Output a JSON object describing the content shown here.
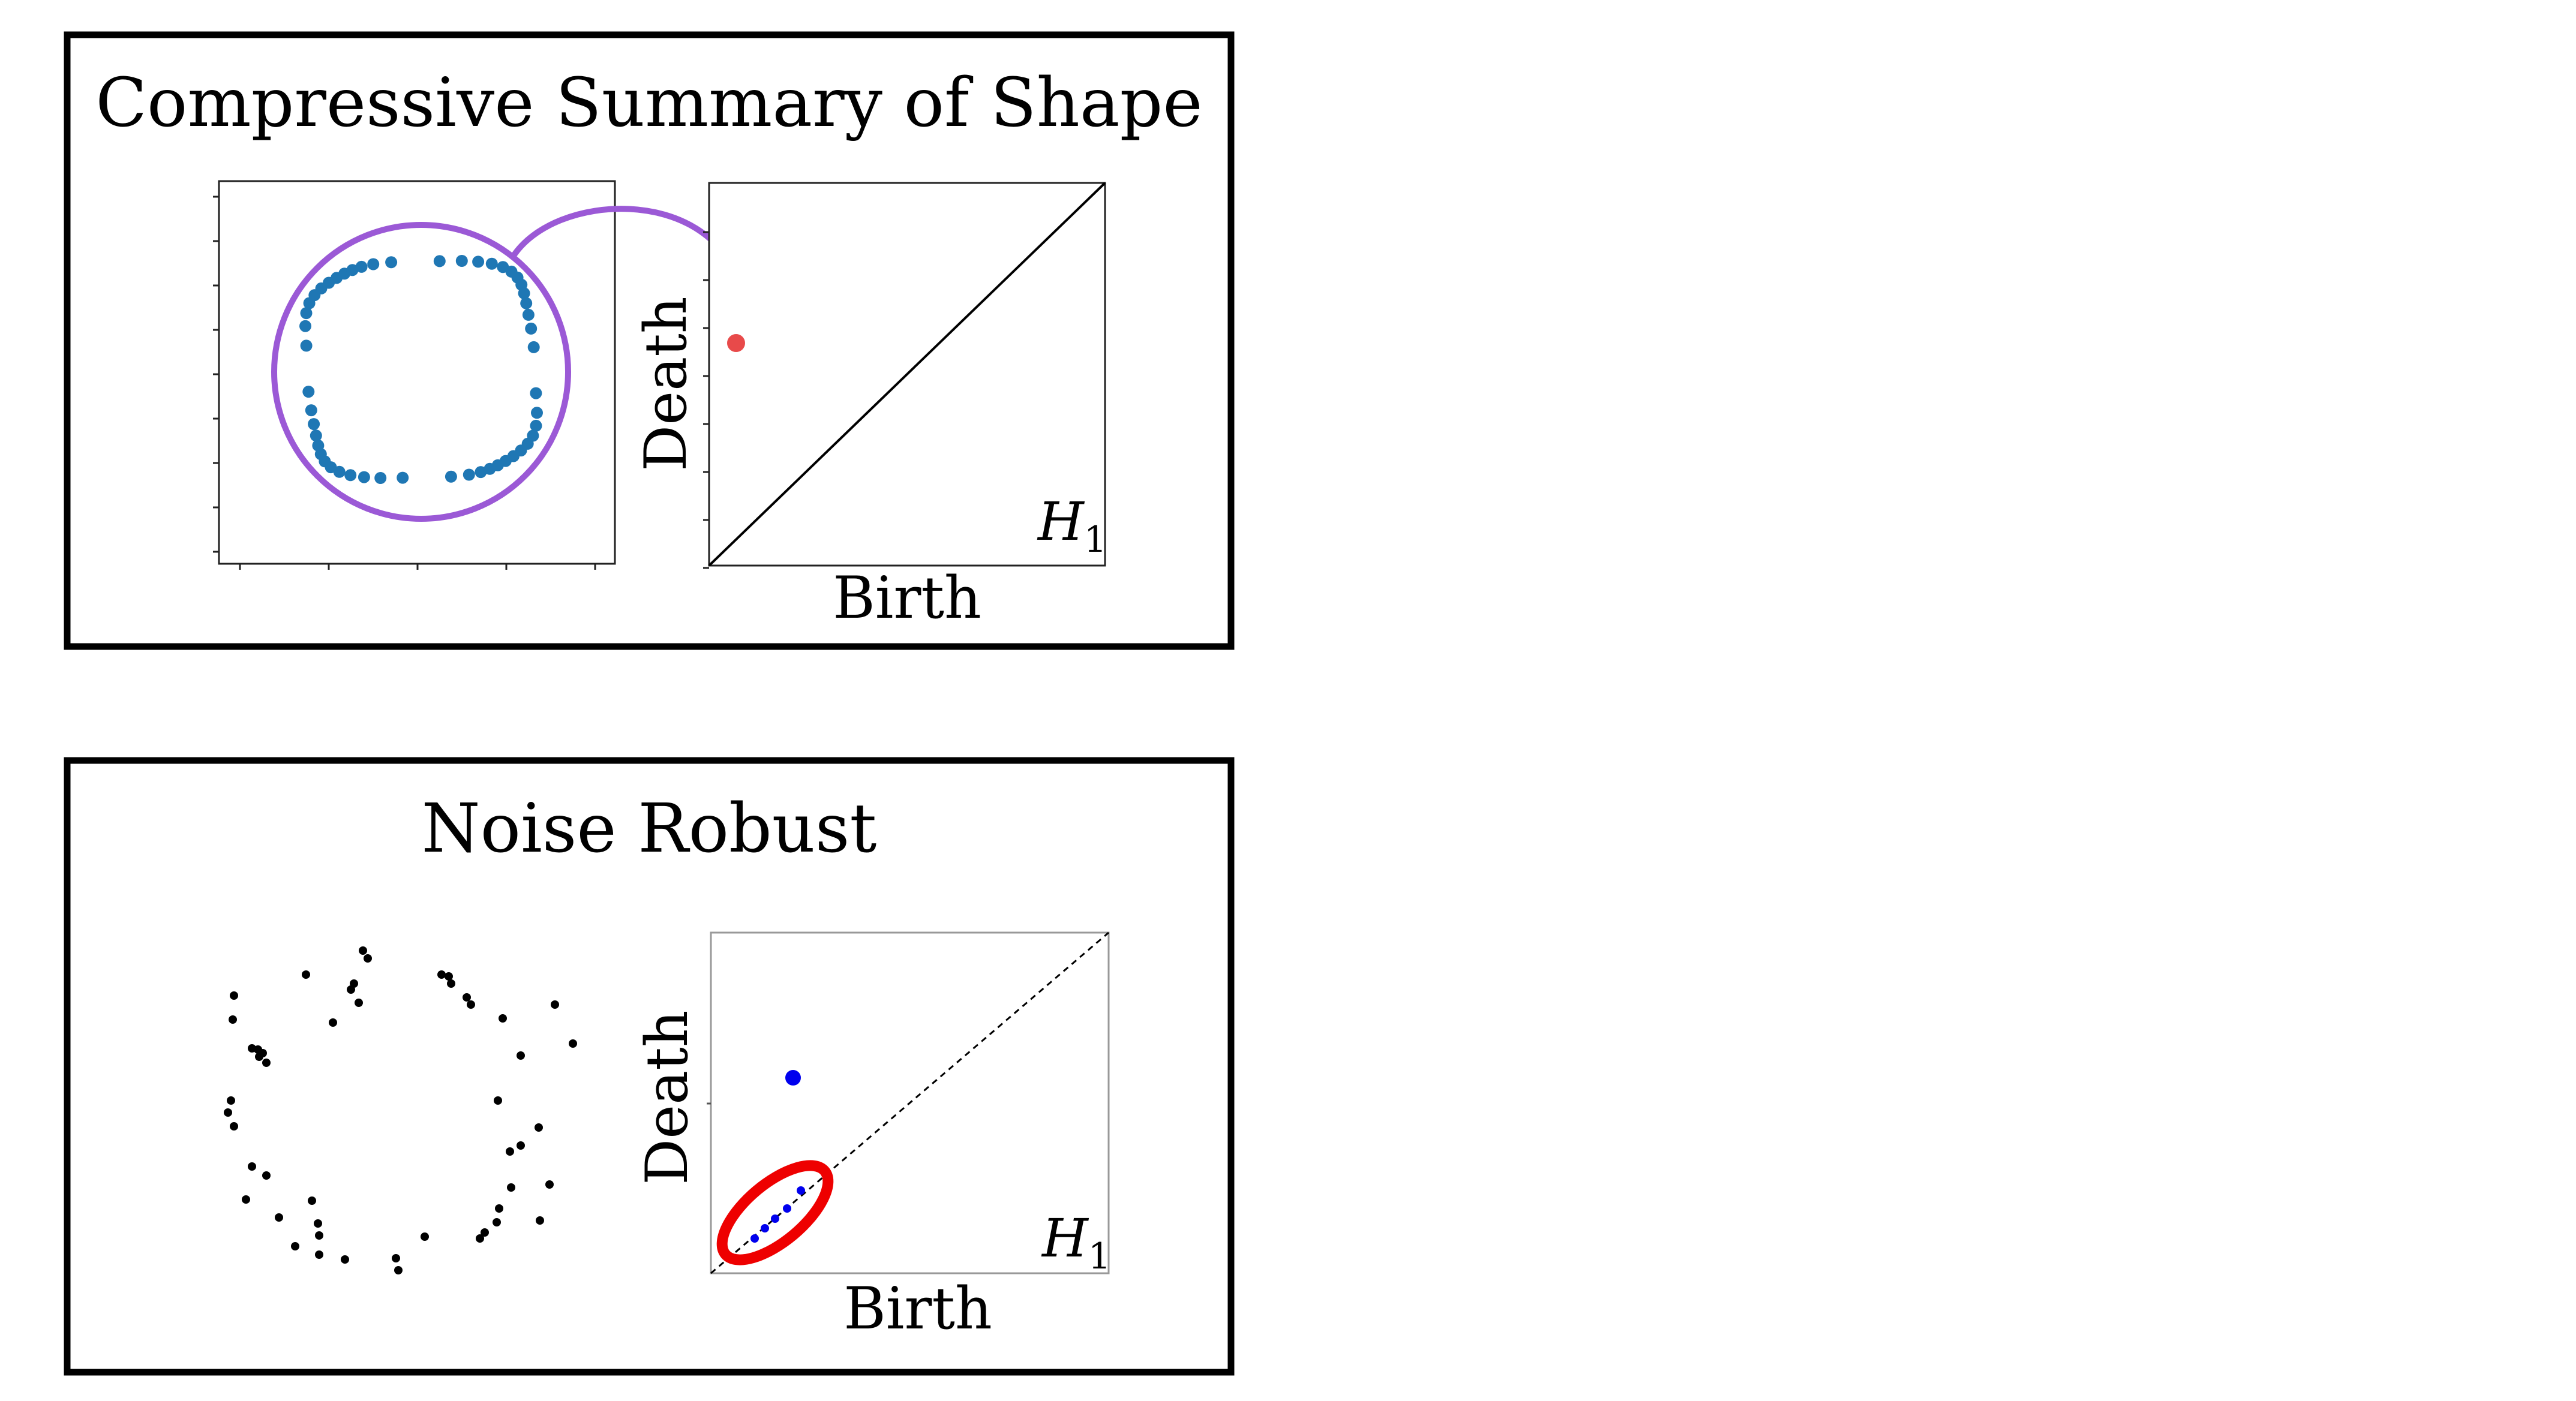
{
  "panels": [
    {
      "title": "Compressive Summary of Shape",
      "persistence_diagram": {
        "xlabel": "Birth",
        "ylabel": "Death",
        "homology_label": "H",
        "homology_subscript": "1"
      }
    },
    {
      "title": "Noise Robust",
      "persistence_diagram": {
        "xlabel": "Birth",
        "ylabel": "Death",
        "homology_label": "H",
        "homology_subscript": "1"
      }
    }
  ],
  "colors": {
    "point_cloud": "#1f77b4",
    "enclosing_circle": "#9b59d6",
    "arrow": "#9b59d6",
    "persistent_point": "#e84a4a",
    "noise_points": "#000000",
    "noise_diagram_points": "#0000ee",
    "noise_ellipse": "#ee0000",
    "diagonal": "#000000"
  }
}
